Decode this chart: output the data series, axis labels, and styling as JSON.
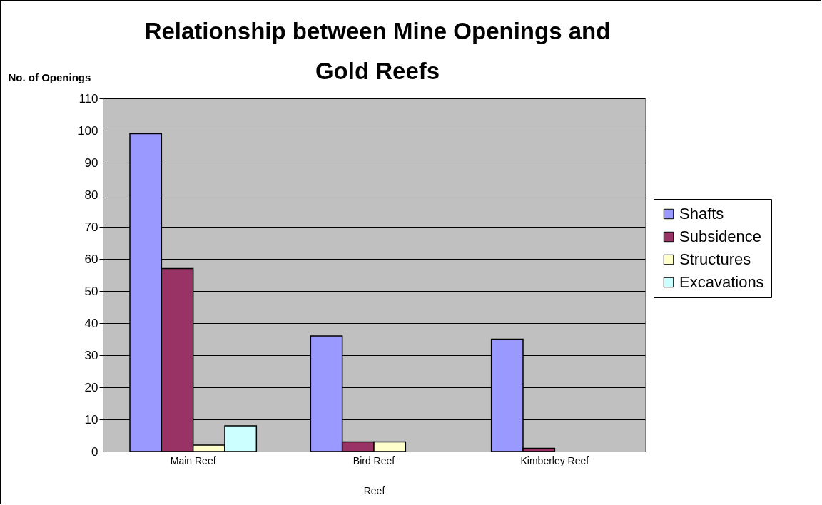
{
  "chart_data": {
    "type": "bar",
    "title": "Relationship between Mine Openings and Gold Reefs",
    "xlabel": "Reef",
    "ylabel": "No. of Openings",
    "categories": [
      "Main Reef",
      "Bird Reef",
      "Kimberley Reef"
    ],
    "series": [
      {
        "name": "Shafts",
        "color": "#9999ff",
        "values": [
          99,
          36,
          35
        ]
      },
      {
        "name": "Subsidence",
        "color": "#993366",
        "values": [
          57,
          3,
          1
        ]
      },
      {
        "name": "Structures",
        "color": "#ffffcc",
        "values": [
          2,
          3,
          null
        ]
      },
      {
        "name": "Excavations",
        "color": "#ccffff",
        "values": [
          8,
          null,
          null
        ]
      }
    ],
    "ylim": [
      0,
      110
    ],
    "yticks": [
      0,
      10,
      20,
      30,
      40,
      50,
      60,
      70,
      80,
      90,
      100,
      110
    ],
    "grid": "y",
    "legend": "right"
  }
}
